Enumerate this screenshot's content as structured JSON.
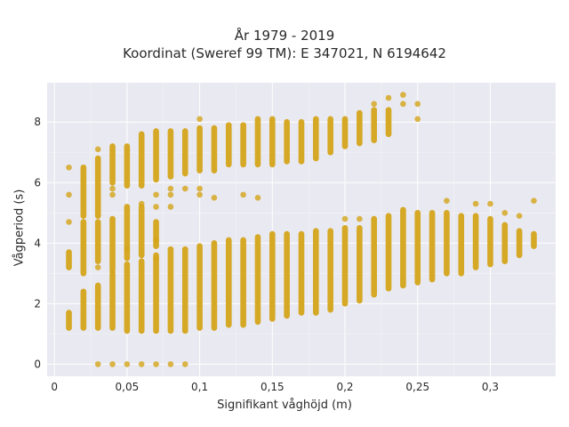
{
  "chart_data": {
    "type": "scatter",
    "title": "År 1979 - 2019",
    "subtitle": "Koordinat (Sweref 99 TM): E 347021, N 6194642",
    "xlabel": "Signifikant våghöjd (m)",
    "ylabel": "Vågperiod (s)",
    "xlim": [
      -0.005,
      0.345
    ],
    "ylim": [
      -0.4,
      9.3
    ],
    "x_ticks": [
      0,
      0.05,
      0.1,
      0.15,
      0.2,
      0.25,
      0.3
    ],
    "x_tick_labels": [
      "0",
      "0,05",
      "0,1",
      "0,15",
      "0,2",
      "0,25",
      "0,3"
    ],
    "y_ticks": [
      0,
      2,
      4,
      6,
      8
    ],
    "y_tick_labels": [
      "0",
      "2",
      "4",
      "6",
      "8"
    ],
    "grid": true,
    "marker_color": "#d4a419",
    "background": "#e9e9f1",
    "columns": [
      {
        "x": 0.01,
        "ranges": [
          [
            1.2,
            1.7
          ],
          [
            3.2,
            3.7
          ]
        ],
        "points": [
          4.7,
          5.6,
          6.5
        ]
      },
      {
        "x": 0.02,
        "ranges": [
          [
            1.2,
            2.4
          ],
          [
            3.0,
            4.7
          ],
          [
            4.9,
            6.5
          ]
        ],
        "points": []
      },
      {
        "x": 0.03,
        "ranges": [
          [
            1.2,
            2.6
          ],
          [
            3.4,
            4.7
          ],
          [
            4.9,
            6.8
          ]
        ],
        "points": [
          0,
          3.2,
          7.1
        ]
      },
      {
        "x": 0.04,
        "ranges": [
          [
            1.2,
            3.0
          ],
          [
            3.1,
            4.8
          ],
          [
            6.0,
            7.2
          ]
        ],
        "points": [
          0,
          5.6,
          5.8
        ]
      },
      {
        "x": 0.05,
        "ranges": [
          [
            1.1,
            3.3
          ],
          [
            3.5,
            5.2
          ],
          [
            5.9,
            7.2
          ]
        ],
        "points": [
          0,
          3.8
        ]
      },
      {
        "x": 0.06,
        "ranges": [
          [
            1.1,
            3.4
          ],
          [
            3.6,
            5.2
          ],
          [
            5.9,
            7.6
          ]
        ],
        "points": [
          0,
          5.3
        ]
      },
      {
        "x": 0.07,
        "ranges": [
          [
            1.1,
            3.6
          ],
          [
            3.9,
            4.7
          ],
          [
            6.1,
            7.7
          ]
        ],
        "points": [
          0,
          3.5,
          4.1,
          5.2,
          5.6
        ]
      },
      {
        "x": 0.08,
        "ranges": [
          [
            1.1,
            3.8
          ],
          [
            6.2,
            7.7
          ]
        ],
        "points": [
          0,
          5.2,
          5.6,
          5.8
        ]
      },
      {
        "x": 0.09,
        "ranges": [
          [
            1.1,
            3.8
          ],
          [
            6.3,
            7.7
          ]
        ],
        "points": [
          0,
          5.8
        ]
      },
      {
        "x": 0.1,
        "ranges": [
          [
            1.2,
            3.9
          ],
          [
            6.4,
            7.8
          ]
        ],
        "points": [
          5.6,
          5.8,
          8.1
        ]
      },
      {
        "x": 0.11,
        "ranges": [
          [
            1.2,
            4.0
          ],
          [
            6.4,
            7.8
          ]
        ],
        "points": [
          5.5
        ]
      },
      {
        "x": 0.12,
        "ranges": [
          [
            1.3,
            4.1
          ],
          [
            6.6,
            7.9
          ]
        ],
        "points": []
      },
      {
        "x": 0.13,
        "ranges": [
          [
            1.3,
            4.1
          ],
          [
            6.6,
            7.9
          ]
        ],
        "points": [
          5.6
        ]
      },
      {
        "x": 0.14,
        "ranges": [
          [
            1.4,
            4.2
          ],
          [
            6.6,
            8.1
          ]
        ],
        "points": [
          5.5
        ]
      },
      {
        "x": 0.15,
        "ranges": [
          [
            1.5,
            4.3
          ],
          [
            6.6,
            8.1
          ]
        ],
        "points": []
      },
      {
        "x": 0.16,
        "ranges": [
          [
            1.6,
            4.3
          ],
          [
            6.7,
            8.0
          ]
        ],
        "points": []
      },
      {
        "x": 0.17,
        "ranges": [
          [
            1.7,
            4.3
          ],
          [
            6.7,
            8.0
          ]
        ],
        "points": []
      },
      {
        "x": 0.18,
        "ranges": [
          [
            1.7,
            4.4
          ],
          [
            6.8,
            8.1
          ]
        ],
        "points": []
      },
      {
        "x": 0.19,
        "ranges": [
          [
            1.8,
            4.4
          ],
          [
            7.0,
            8.1
          ]
        ],
        "points": []
      },
      {
        "x": 0.2,
        "ranges": [
          [
            2.0,
            4.5
          ],
          [
            7.2,
            8.1
          ]
        ],
        "points": [
          4.8
        ]
      },
      {
        "x": 0.21,
        "ranges": [
          [
            2.1,
            4.5
          ],
          [
            7.3,
            8.3
          ]
        ],
        "points": [
          4.8
        ]
      },
      {
        "x": 0.22,
        "ranges": [
          [
            2.3,
            4.8
          ],
          [
            7.4,
            8.4
          ]
        ],
        "points": [
          8.6
        ]
      },
      {
        "x": 0.23,
        "ranges": [
          [
            2.5,
            4.9
          ],
          [
            7.6,
            8.4
          ]
        ],
        "points": [
          8.8
        ]
      },
      {
        "x": 0.24,
        "ranges": [
          [
            2.6,
            5.1
          ]
        ],
        "points": [
          8.6,
          8.9
        ]
      },
      {
        "x": 0.25,
        "ranges": [
          [
            2.7,
            5.0
          ]
        ],
        "points": [
          8.1,
          8.6
        ]
      },
      {
        "x": 0.26,
        "ranges": [
          [
            2.8,
            5.0
          ]
        ],
        "points": []
      },
      {
        "x": 0.27,
        "ranges": [
          [
            3.0,
            5.0
          ]
        ],
        "points": [
          5.4
        ]
      },
      {
        "x": 0.28,
        "ranges": [
          [
            3.0,
            4.9
          ]
        ],
        "points": []
      },
      {
        "x": 0.29,
        "ranges": [
          [
            3.2,
            4.9
          ]
        ],
        "points": [
          5.3
        ]
      },
      {
        "x": 0.3,
        "ranges": [
          [
            3.3,
            4.8
          ]
        ],
        "points": [
          5.3
        ]
      },
      {
        "x": 0.31,
        "ranges": [
          [
            3.4,
            4.6
          ]
        ],
        "points": [
          5.0
        ]
      },
      {
        "x": 0.32,
        "ranges": [
          [
            3.6,
            4.4
          ]
        ],
        "points": [
          4.9
        ]
      },
      {
        "x": 0.33,
        "ranges": [
          [
            3.9,
            4.3
          ]
        ],
        "points": [
          5.4
        ]
      }
    ]
  }
}
